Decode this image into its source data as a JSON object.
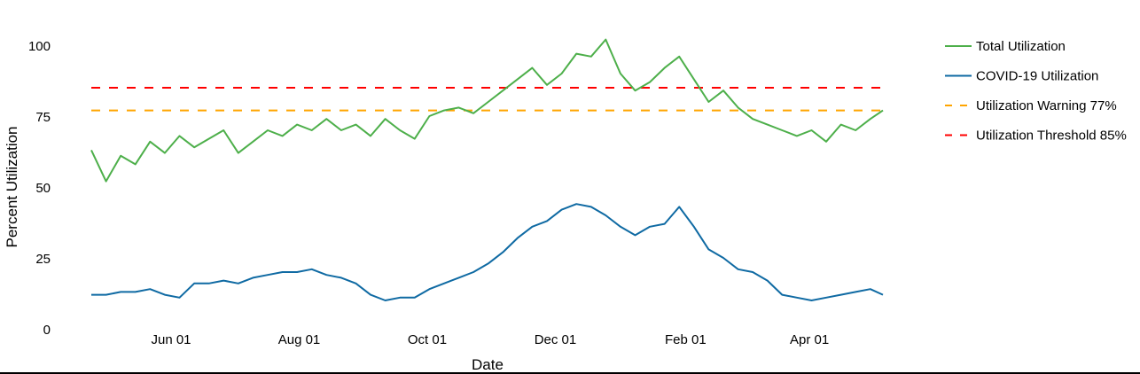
{
  "chart_data": {
    "type": "line",
    "title": "",
    "xlabel": "Date",
    "ylabel": "Percent Utilization",
    "x_unit": "days since first data point",
    "xlim": [
      0,
      377
    ],
    "ylim": [
      0,
      100
    ],
    "yticks": [
      0,
      25,
      50,
      75,
      100
    ],
    "xticks": [
      {
        "day": 38,
        "label": "Jun 01"
      },
      {
        "day": 99,
        "label": "Aug 01"
      },
      {
        "day": 160,
        "label": "Oct 01"
      },
      {
        "day": 221,
        "label": "Dec 01"
      },
      {
        "day": 283,
        "label": "Feb 01"
      },
      {
        "day": 342,
        "label": "Apr 01"
      }
    ],
    "grid": false,
    "legend_position": "right",
    "x": [
      0,
      7,
      14,
      21,
      28,
      35,
      42,
      49,
      56,
      63,
      70,
      77,
      84,
      91,
      98,
      105,
      112,
      119,
      126,
      133,
      140,
      147,
      154,
      161,
      168,
      175,
      182,
      189,
      196,
      203,
      210,
      217,
      224,
      231,
      238,
      245,
      252,
      259,
      266,
      273,
      280,
      287,
      294,
      301,
      308,
      315,
      322,
      329,
      336,
      343,
      350,
      357,
      364,
      371,
      377
    ],
    "series": [
      {
        "name": "Total Utilization",
        "color": "#4daf4a",
        "style": "solid",
        "values": [
          63,
          52,
          61,
          58,
          66,
          62,
          68,
          64,
          67,
          70,
          62,
          66,
          70,
          68,
          72,
          70,
          74,
          70,
          72,
          68,
          74,
          70,
          67,
          75,
          77,
          78,
          76,
          80,
          84,
          88,
          92,
          86,
          90,
          97,
          96,
          102,
          90,
          84,
          87,
          92,
          96,
          88,
          80,
          84,
          78,
          74,
          72,
          70,
          68,
          70,
          66,
          72,
          70,
          74,
          77
        ]
      },
      {
        "name": "COVID-19 Utilization",
        "color": "#0f6aa3",
        "style": "solid",
        "values": [
          12,
          12,
          13,
          13,
          14,
          12,
          11,
          16,
          16,
          17,
          16,
          18,
          19,
          20,
          20,
          21,
          19,
          18,
          16,
          12,
          10,
          11,
          11,
          14,
          16,
          18,
          20,
          23,
          27,
          32,
          36,
          38,
          42,
          44,
          43,
          40,
          36,
          33,
          36,
          37,
          43,
          36,
          28,
          25,
          21,
          20,
          17,
          12,
          11,
          10,
          11,
          12,
          13,
          14,
          12
        ]
      },
      {
        "name": "Utilization Warning 77%",
        "color": "#ffa500",
        "style": "dashed",
        "constant": 77
      },
      {
        "name": "Utilization Threshold 85%",
        "color": "#ff0000",
        "style": "dashed",
        "constant": 85
      }
    ]
  }
}
